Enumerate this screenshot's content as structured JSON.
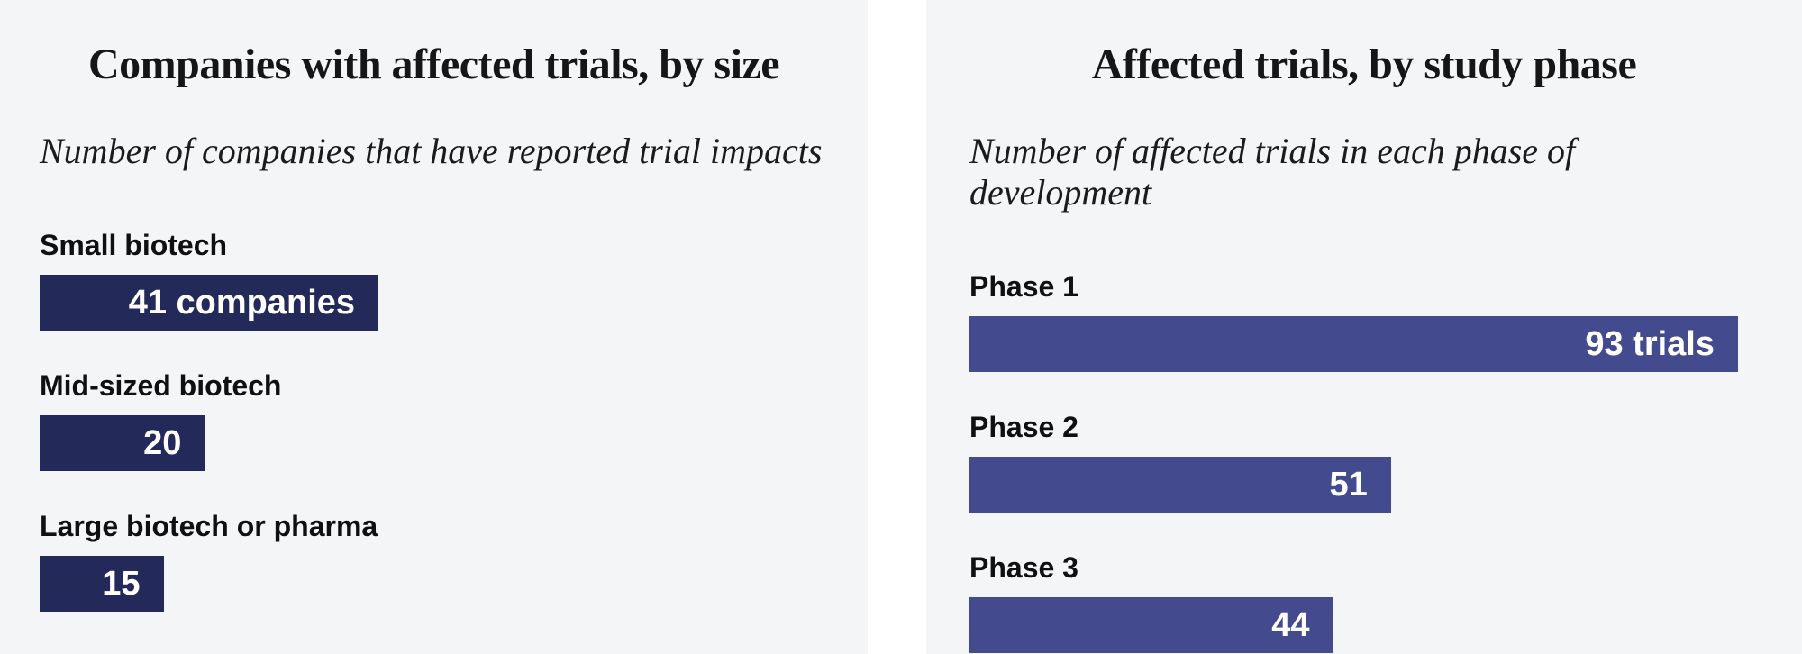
{
  "page": {
    "background_color": "#ffffff",
    "panel_background_color": "#f4f5f7"
  },
  "chart_data": [
    {
      "type": "bar",
      "orientation": "horizontal",
      "title": "Companies with affected trials, by size",
      "subtitle": "Number of companies that have reported trial impacts",
      "categories": [
        "Small biotech",
        "Mid-sized biotech",
        "Large biotech or pharma"
      ],
      "values": [
        41,
        20,
        15
      ],
      "bar_labels": [
        "41 companies",
        "20",
        "15"
      ],
      "xlim": [
        0,
        93
      ],
      "xlabel": "",
      "ylabel": "",
      "grid": false,
      "legend": false,
      "bar_color": "#232a5a",
      "value_label_color": "#ffffff",
      "value_label_position": "inside-right"
    },
    {
      "type": "bar",
      "orientation": "horizontal",
      "title": "Affected trials, by study phase",
      "subtitle": "Number of affected trials in each phase of development",
      "categories": [
        "Phase 1",
        "Phase 2",
        "Phase 3"
      ],
      "values": [
        93,
        51,
        44
      ],
      "bar_labels": [
        "93 trials",
        "51",
        "44"
      ],
      "xlim": [
        0,
        93
      ],
      "xlabel": "",
      "ylabel": "",
      "grid": false,
      "legend": false,
      "bar_color": "#434a8e",
      "value_label_color": "#ffffff",
      "value_label_position": "inside-right"
    }
  ]
}
